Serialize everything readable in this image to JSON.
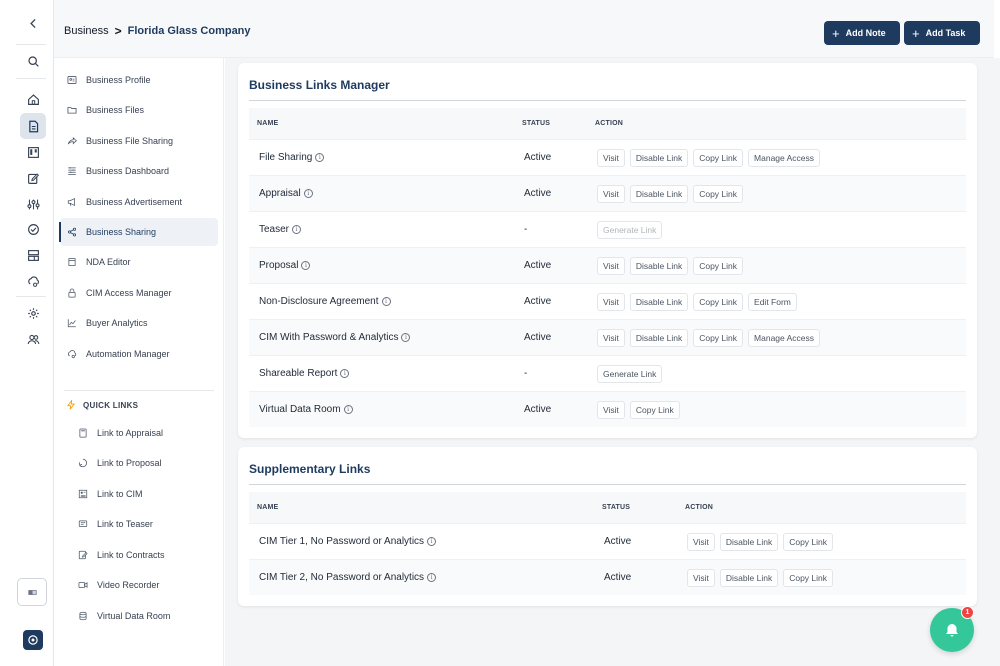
{
  "header": {
    "breadcrumb_root": "Business",
    "breadcrumb_sep": ">",
    "breadcrumb_current": "Florida Glass Company",
    "add_note_label": "Add Note",
    "add_task_label": "Add Task"
  },
  "rail": {
    "icons": [
      "chevron-left-icon",
      "search-icon",
      "home-icon",
      "document-icon",
      "kanban-icon",
      "edit-icon",
      "sliders-icon",
      "check-circle-icon",
      "layout-icon",
      "cloud-sync-icon",
      "settings-icon",
      "users-icon",
      "card-icon",
      "logo-icon"
    ]
  },
  "sidebar": {
    "items": [
      {
        "label": "Business Profile",
        "icon": "profile-icon"
      },
      {
        "label": "Business Files",
        "icon": "folder-icon"
      },
      {
        "label": "Business File Sharing",
        "icon": "share-icon"
      },
      {
        "label": "Business Dashboard",
        "icon": "dashboard-icon"
      },
      {
        "label": "Business Advertisement",
        "icon": "megaphone-icon"
      },
      {
        "label": "Business Sharing",
        "icon": "share-nodes-icon",
        "active": true
      },
      {
        "label": "NDA Editor",
        "icon": "nda-icon"
      },
      {
        "label": "CIM Access Manager",
        "icon": "lock-icon"
      },
      {
        "label": "Buyer Analytics",
        "icon": "analytics-icon"
      },
      {
        "label": "Automation Manager",
        "icon": "automation-icon"
      }
    ],
    "quick_links_title": "QUICK LINKS",
    "quick_links": [
      {
        "label": "Link to Appraisal",
        "icon": "calculator-icon"
      },
      {
        "label": "Link to Proposal",
        "icon": "proposal-icon"
      },
      {
        "label": "Link to CIM",
        "icon": "cim-icon"
      },
      {
        "label": "Link to Teaser",
        "icon": "teaser-icon"
      },
      {
        "label": "Link to Contracts",
        "icon": "contracts-icon"
      },
      {
        "label": "Video Recorder",
        "icon": "video-icon"
      },
      {
        "label": "Virtual Data Room",
        "icon": "database-icon"
      }
    ]
  },
  "links_manager": {
    "title": "Business Links Manager",
    "columns": {
      "name": "NAME",
      "status": "STATUS",
      "action": "ACTION"
    },
    "rows": [
      {
        "name": "File Sharing",
        "status": "Active",
        "actions": [
          "Visit",
          "Disable Link",
          "Copy Link",
          "Manage Access"
        ]
      },
      {
        "name": "Appraisal",
        "status": "Active",
        "actions": [
          "Visit",
          "Disable Link",
          "Copy Link"
        ]
      },
      {
        "name": "Teaser",
        "status": "-",
        "actions": [
          "Generate Link"
        ],
        "muted": true
      },
      {
        "name": "Proposal",
        "status": "Active",
        "actions": [
          "Visit",
          "Disable Link",
          "Copy Link"
        ]
      },
      {
        "name": "Non-Disclosure Agreement",
        "status": "Active",
        "actions": [
          "Visit",
          "Disable Link",
          "Copy Link",
          "Edit Form"
        ]
      },
      {
        "name": "CIM With Password & Analytics",
        "status": "Active",
        "actions": [
          "Visit",
          "Disable Link",
          "Copy Link",
          "Manage Access"
        ]
      },
      {
        "name": "Shareable Report",
        "status": "-",
        "actions": [
          "Generate Link"
        ]
      },
      {
        "name": "Virtual Data Room",
        "status": "Active",
        "actions": [
          "Visit",
          "Copy Link"
        ]
      }
    ]
  },
  "supplementary": {
    "title": "Supplementary Links",
    "columns": {
      "name": "NAME",
      "status": "STATUS",
      "action": "ACTION"
    },
    "rows": [
      {
        "name": "CIM Tier 1, No Password or Analytics",
        "status": "Active",
        "actions": [
          "Visit",
          "Disable Link",
          "Copy Link"
        ]
      },
      {
        "name": "CIM Tier 2, No Password or Analytics",
        "status": "Active",
        "actions": [
          "Visit",
          "Disable Link",
          "Copy Link"
        ]
      }
    ]
  },
  "notifications": {
    "count": "1"
  },
  "colors": {
    "brand": "#1e3a5f",
    "fab": "#34c79a",
    "badge": "#ef4444"
  }
}
